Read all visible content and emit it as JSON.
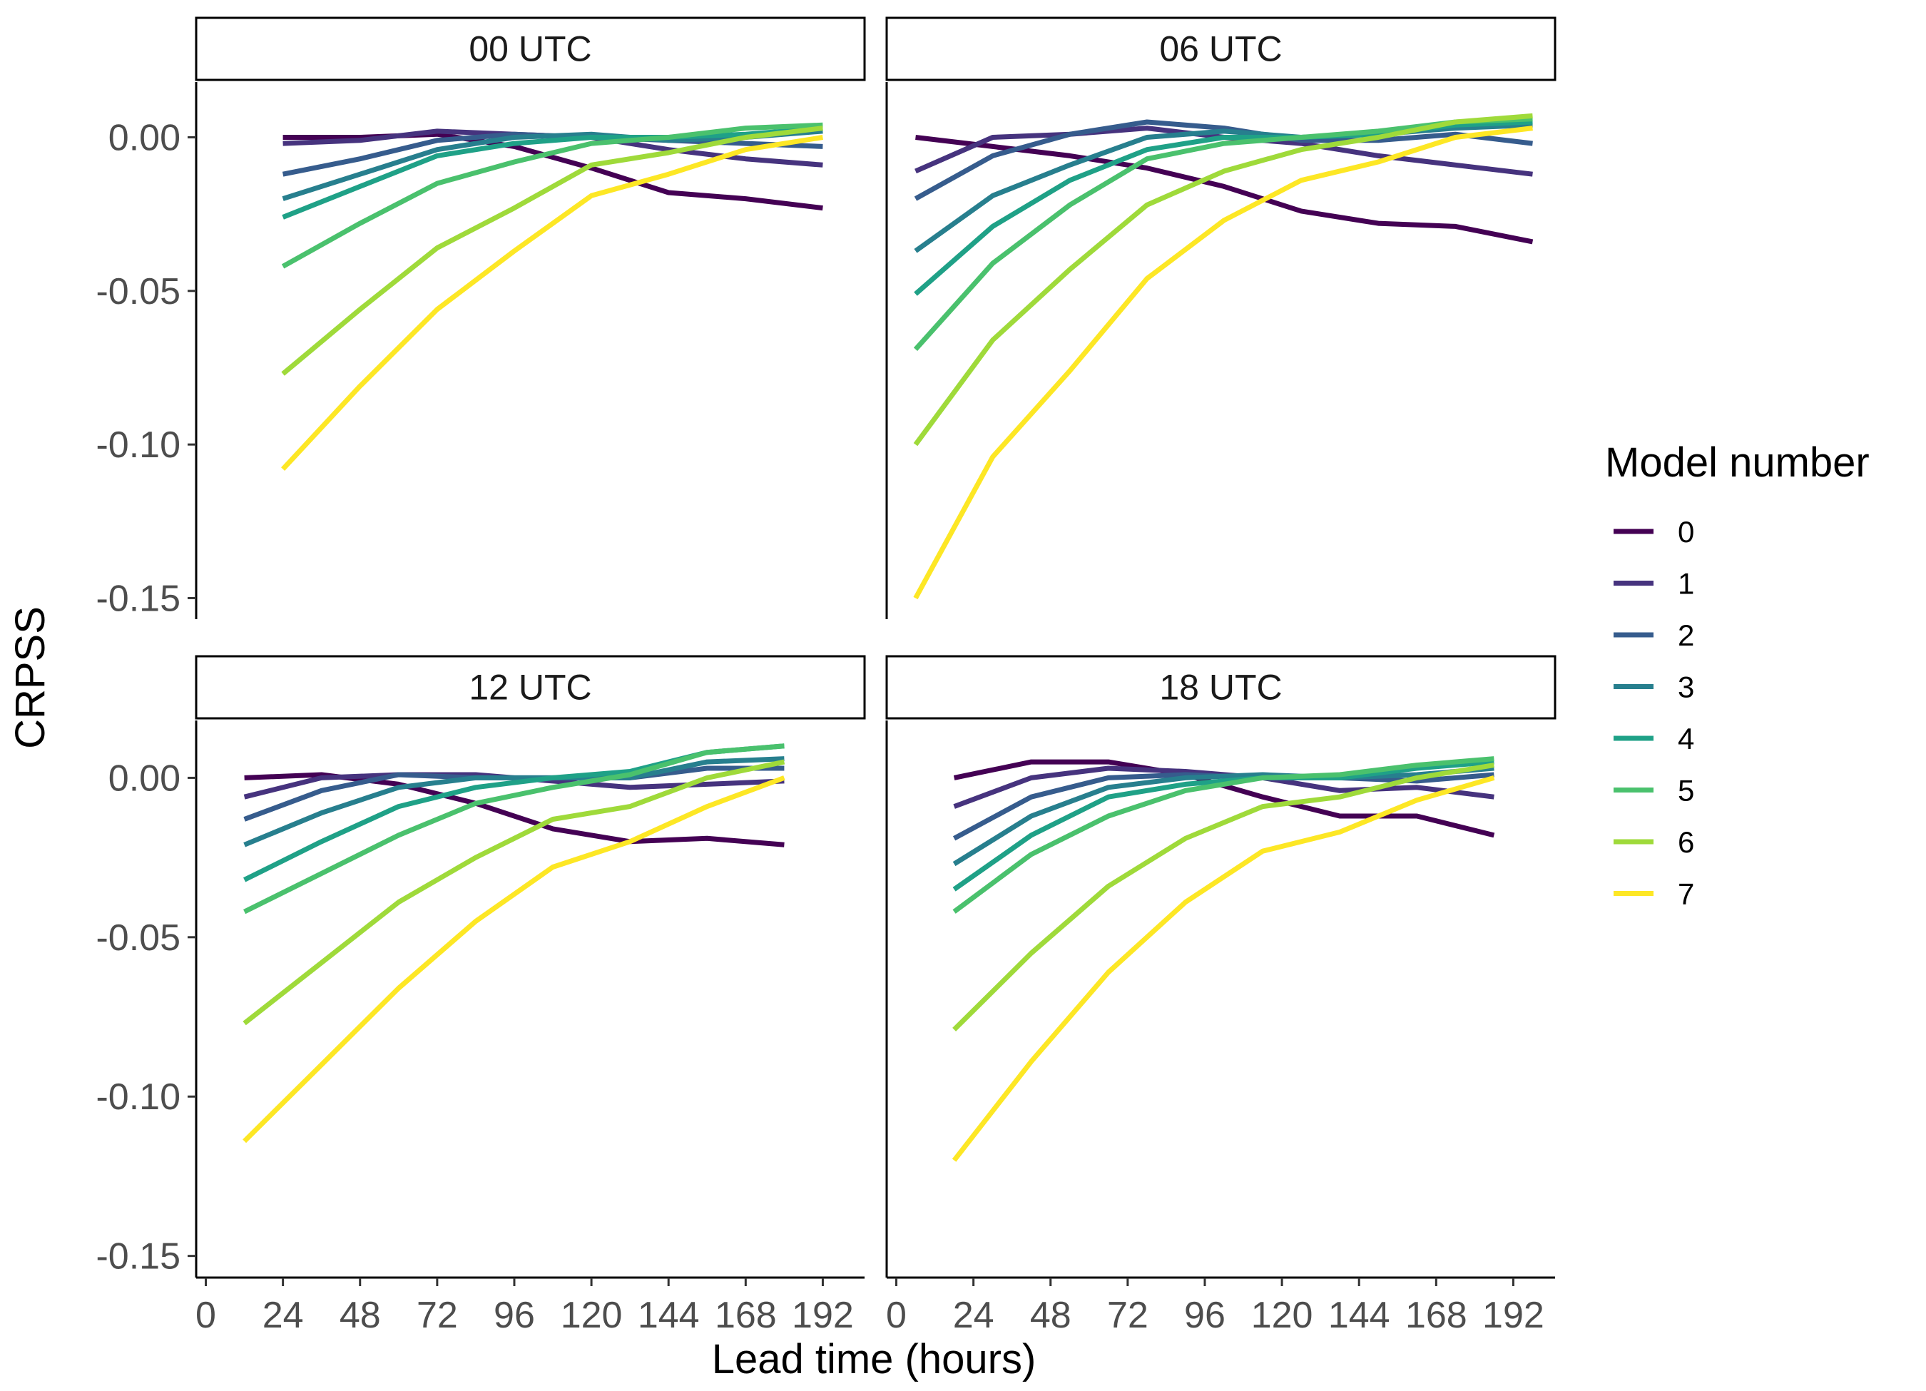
{
  "chart_data": {
    "type": "line",
    "xlabel": "Lead time (hours)",
    "ylabel": "CRPSS",
    "x_ticks": [
      0,
      24,
      48,
      72,
      96,
      120,
      144,
      168,
      192
    ],
    "y_ticks": [
      0.0,
      -0.05,
      -0.1,
      -0.15
    ],
    "y_tick_labels": [
      "0.00",
      "-0.05",
      "-0.10",
      "-0.15"
    ],
    "xlim": [
      -3,
      205
    ],
    "ylim": [
      -0.155,
      0.018
    ],
    "legend": {
      "title": "Model number",
      "position": "right",
      "entries": [
        "0",
        "1",
        "2",
        "3",
        "4",
        "5",
        "6",
        "7"
      ]
    },
    "colors": [
      "#440154",
      "#46337E",
      "#365C8D",
      "#277F8E",
      "#1FA187",
      "#4AC16D",
      "#9FDA3A",
      "#FDE725"
    ],
    "grid": false,
    "panels": [
      {
        "title": "00 UTC",
        "x": [
          24,
          48,
          72,
          96,
          120,
          144,
          168,
          192
        ],
        "series": [
          {
            "name": "0",
            "values": [
              0.0,
              0.0,
              0.001,
              -0.003,
              -0.01,
              -0.018,
              -0.02,
              -0.023
            ]
          },
          {
            "name": "1",
            "values": [
              -0.002,
              -0.001,
              0.002,
              0.001,
              0.0,
              -0.004,
              -0.007,
              -0.009
            ]
          },
          {
            "name": "2",
            "values": [
              -0.012,
              -0.007,
              -0.001,
              0.001,
              0.0,
              -0.001,
              -0.002,
              -0.003
            ]
          },
          {
            "name": "3",
            "values": [
              -0.02,
              -0.012,
              -0.004,
              0.0,
              0.001,
              -0.001,
              0.0,
              0.002
            ]
          },
          {
            "name": "4",
            "values": [
              -0.026,
              -0.016,
              -0.006,
              -0.002,
              0.0,
              0.0,
              0.001,
              0.003
            ]
          },
          {
            "name": "5",
            "values": [
              -0.042,
              -0.028,
              -0.015,
              -0.008,
              -0.002,
              0.0,
              0.003,
              0.004
            ]
          },
          {
            "name": "6",
            "values": [
              -0.077,
              -0.056,
              -0.036,
              -0.023,
              -0.009,
              -0.005,
              0.0,
              0.003
            ]
          },
          {
            "name": "7",
            "values": [
              -0.108,
              -0.081,
              -0.056,
              -0.037,
              -0.019,
              -0.012,
              -0.004,
              0.0
            ]
          }
        ]
      },
      {
        "title": "06 UTC",
        "x": [
          6,
          30,
          54,
          78,
          102,
          126,
          150,
          174,
          198
        ],
        "series": [
          {
            "name": "0",
            "values": [
              0.0,
              -0.003,
              -0.006,
              -0.01,
              -0.016,
              -0.024,
              -0.028,
              -0.029,
              -0.034
            ]
          },
          {
            "name": "1",
            "values": [
              -0.011,
              0.0,
              0.001,
              0.003,
              0.0,
              -0.002,
              -0.006,
              -0.009,
              -0.012
            ]
          },
          {
            "name": "2",
            "values": [
              -0.02,
              -0.006,
              0.001,
              0.005,
              0.003,
              -0.001,
              -0.001,
              0.001,
              -0.002
            ]
          },
          {
            "name": "3",
            "values": [
              -0.037,
              -0.019,
              -0.009,
              0.0,
              0.002,
              0.0,
              0.001,
              0.003,
              0.004
            ]
          },
          {
            "name": "4",
            "values": [
              -0.051,
              -0.029,
              -0.014,
              -0.004,
              0.0,
              0.0,
              0.001,
              0.004,
              0.005
            ]
          },
          {
            "name": "5",
            "values": [
              -0.069,
              -0.041,
              -0.022,
              -0.007,
              -0.002,
              0.0,
              0.002,
              0.005,
              0.006
            ]
          },
          {
            "name": "6",
            "values": [
              -0.1,
              -0.066,
              -0.043,
              -0.022,
              -0.011,
              -0.004,
              0.0,
              0.005,
              0.007
            ]
          },
          {
            "name": "7",
            "values": [
              -0.15,
              -0.104,
              -0.076,
              -0.046,
              -0.027,
              -0.014,
              -0.008,
              0.0,
              0.003
            ]
          }
        ]
      },
      {
        "title": "12 UTC",
        "x": [
          12,
          36,
          60,
          84,
          108,
          132,
          156,
          180
        ],
        "series": [
          {
            "name": "0",
            "values": [
              0.0,
              0.001,
              -0.002,
              -0.008,
              -0.016,
              -0.02,
              -0.019,
              -0.021
            ]
          },
          {
            "name": "1",
            "values": [
              -0.006,
              0.0,
              0.001,
              0.001,
              -0.001,
              -0.003,
              -0.002,
              -0.001
            ]
          },
          {
            "name": "2",
            "values": [
              -0.013,
              -0.004,
              0.001,
              0.0,
              0.0,
              0.0,
              0.003,
              0.003
            ]
          },
          {
            "name": "3",
            "values": [
              -0.021,
              -0.011,
              -0.003,
              0.0,
              0.0,
              0.0,
              0.005,
              0.006
            ]
          },
          {
            "name": "4",
            "values": [
              -0.032,
              -0.02,
              -0.009,
              -0.003,
              0.0,
              0.002,
              0.008,
              0.01
            ]
          },
          {
            "name": "5",
            "values": [
              -0.042,
              -0.03,
              -0.018,
              -0.008,
              -0.003,
              0.001,
              0.008,
              0.01
            ]
          },
          {
            "name": "6",
            "values": [
              -0.077,
              -0.058,
              -0.039,
              -0.025,
              -0.013,
              -0.009,
              0.0,
              0.005
            ]
          },
          {
            "name": "7",
            "values": [
              -0.114,
              -0.09,
              -0.066,
              -0.045,
              -0.028,
              -0.02,
              -0.009,
              0.0
            ]
          }
        ]
      },
      {
        "title": "18 UTC",
        "x": [
          18,
          42,
          66,
          90,
          114,
          138,
          162,
          186
        ],
        "series": [
          {
            "name": "0",
            "values": [
              0.0,
              0.005,
              0.005,
              0.001,
              -0.006,
              -0.012,
              -0.012,
              -0.018
            ]
          },
          {
            "name": "1",
            "values": [
              -0.009,
              0.0,
              0.003,
              0.002,
              0.0,
              -0.004,
              -0.003,
              -0.006
            ]
          },
          {
            "name": "2",
            "values": [
              -0.019,
              -0.006,
              0.0,
              0.001,
              0.0,
              0.0,
              -0.001,
              0.001
            ]
          },
          {
            "name": "3",
            "values": [
              -0.027,
              -0.012,
              -0.003,
              0.0,
              0.001,
              0.0,
              0.001,
              0.003
            ]
          },
          {
            "name": "4",
            "values": [
              -0.035,
              -0.018,
              -0.006,
              -0.002,
              0.0,
              0.0,
              0.003,
              0.005
            ]
          },
          {
            "name": "5",
            "values": [
              -0.042,
              -0.024,
              -0.012,
              -0.004,
              0.0,
              0.001,
              0.004,
              0.006
            ]
          },
          {
            "name": "6",
            "values": [
              -0.079,
              -0.055,
              -0.034,
              -0.019,
              -0.009,
              -0.006,
              0.0,
              0.004
            ]
          },
          {
            "name": "7",
            "values": [
              -0.12,
              -0.089,
              -0.061,
              -0.039,
              -0.023,
              -0.017,
              -0.007,
              0.0
            ]
          }
        ]
      }
    ]
  }
}
